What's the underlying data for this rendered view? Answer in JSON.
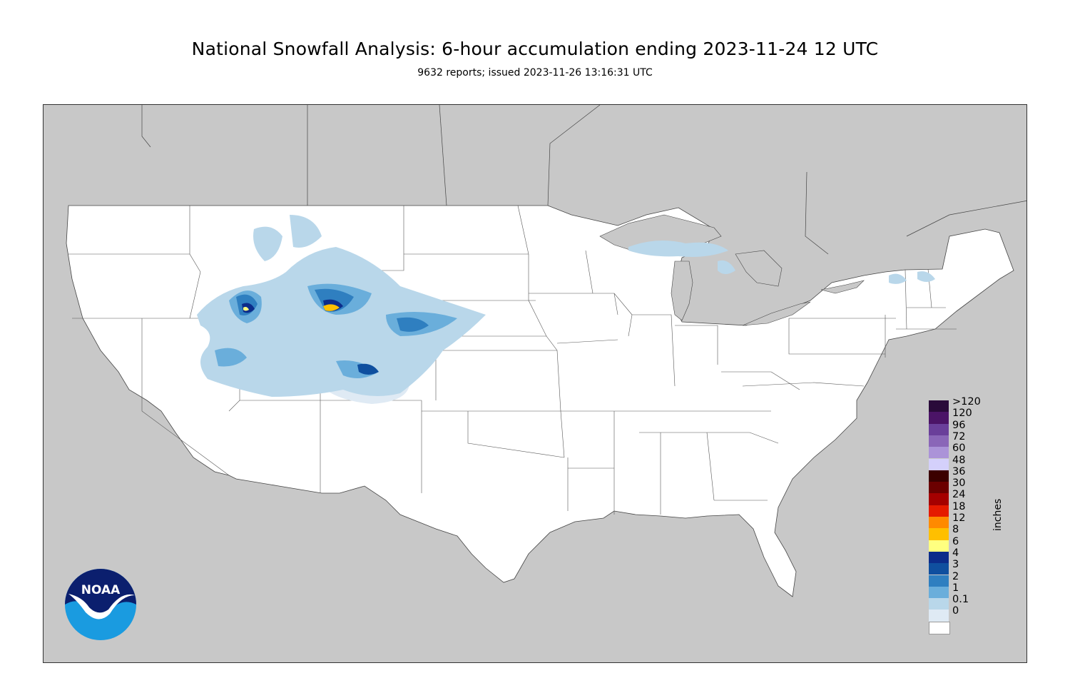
{
  "title": "National Snowfall Analysis: 6-hour accumulation ending 2023-11-24 12 UTC",
  "subtitle": "9632 reports; issued 2023-11-26 13:16:31 UTC",
  "legend": {
    "unit": "inches",
    "entries": [
      {
        "label": ">120",
        "color": "#2a0a3a"
      },
      {
        "label": "120",
        "color": "#4b1467"
      },
      {
        "label": "96",
        "color": "#6a3f9a"
      },
      {
        "label": "72",
        "color": "#8a66b8"
      },
      {
        "label": "60",
        "color": "#ab93d8"
      },
      {
        "label": "48",
        "color": "#d4d0fb"
      },
      {
        "label": "36",
        "color": "#3b0000"
      },
      {
        "label": "30",
        "color": "#6b0000"
      },
      {
        "label": "24",
        "color": "#a50000"
      },
      {
        "label": "18",
        "color": "#e51a00"
      },
      {
        "label": "12",
        "color": "#ff8a00"
      },
      {
        "label": "8",
        "color": "#ffbf00"
      },
      {
        "label": "6",
        "color": "#ffff80"
      },
      {
        "label": "4",
        "color": "#0c2c8a"
      },
      {
        "label": "3",
        "color": "#0f4f9f"
      },
      {
        "label": "2",
        "color": "#2f7fc0"
      },
      {
        "label": "1",
        "color": "#6aaedb"
      },
      {
        "label": "0.1",
        "color": "#b9d7ea"
      },
      {
        "label": "0",
        "color": "#dfeaf4"
      },
      {
        "label": "",
        "color": "#ffffff"
      }
    ]
  },
  "logo": {
    "text": "NOAA",
    "icon": "noaa-logo"
  },
  "colors": {
    "land_outside": "#c8c8c8",
    "land_inside": "#ffffff",
    "border": "#555555"
  }
}
